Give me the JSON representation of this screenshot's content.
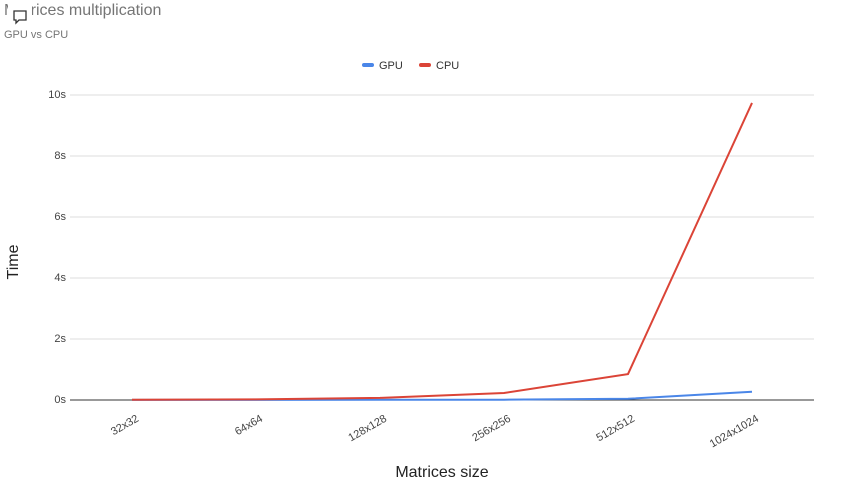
{
  "chart_data": {
    "type": "line",
    "title": "Matrices multiplication",
    "subtitle": "GPU vs CPU",
    "x_label": "Matrices size",
    "y_label": "Time",
    "categories": [
      "32x32",
      "64x64",
      "128x128",
      "256x256",
      "512x512",
      "1024x1024"
    ],
    "series": [
      {
        "name": "GPU",
        "color": "#4a86e8",
        "values": [
          0.005,
          0.005,
          0.01,
          0.01,
          0.04,
          0.27
        ]
      },
      {
        "name": "CPU",
        "color": "#db4437",
        "values": [
          0.01,
          0.02,
          0.07,
          0.23,
          0.85,
          9.74
        ]
      }
    ],
    "ylim": [
      0,
      10
    ],
    "yticks": [
      {
        "value": 0,
        "label": "0s"
      },
      {
        "value": 2,
        "label": "2s"
      },
      {
        "value": 4,
        "label": "4s"
      },
      {
        "value": 6,
        "label": "6s"
      },
      {
        "value": 8,
        "label": "8s"
      },
      {
        "value": 10,
        "label": "10s"
      }
    ],
    "grid": true,
    "legend": "top"
  }
}
